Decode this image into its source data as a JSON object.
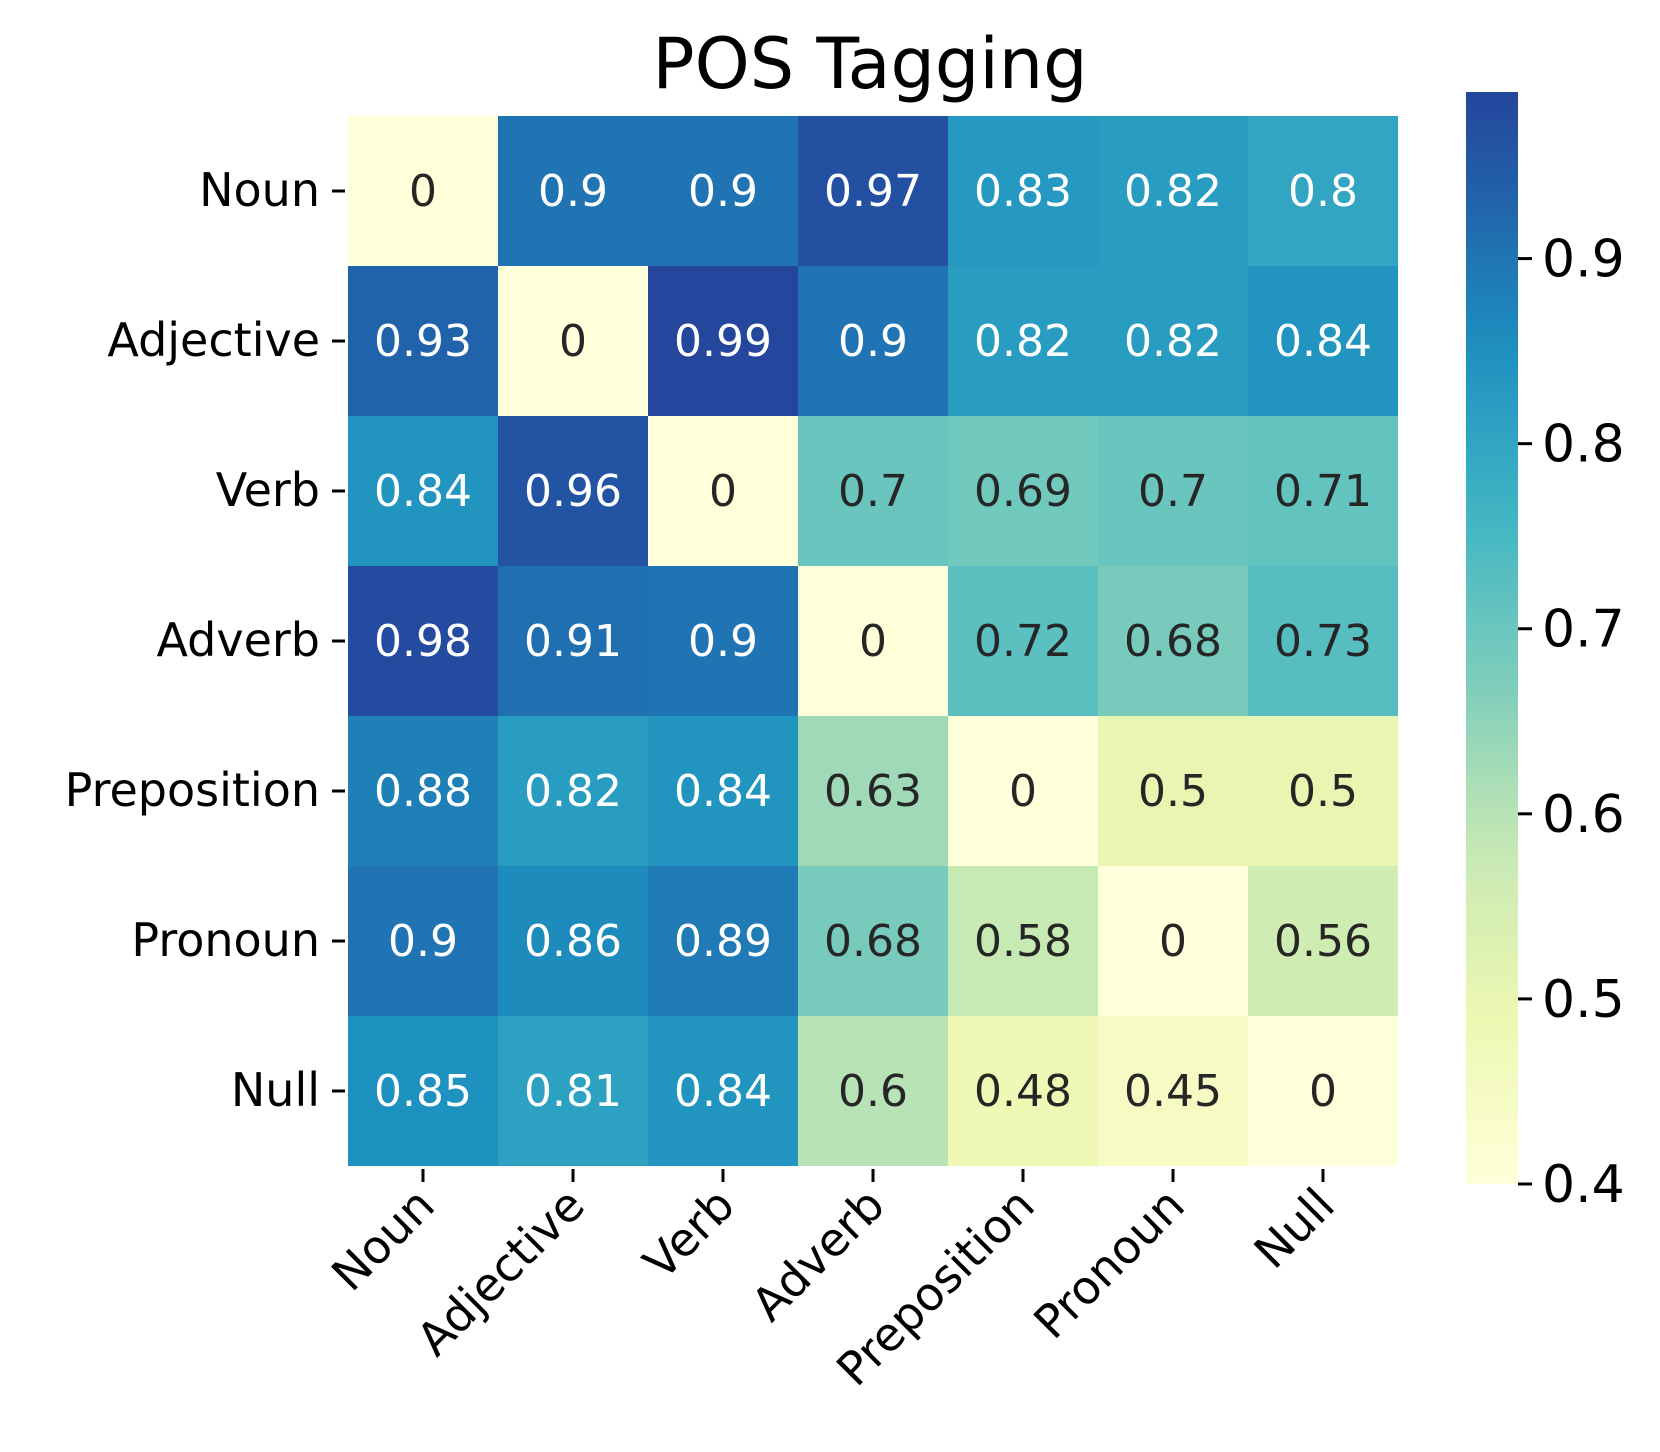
{
  "chart_data": {
    "type": "heatmap",
    "title": "POS Tagging",
    "xlabel": "",
    "ylabel": "",
    "rows": [
      "Noun",
      "Adjective",
      "Verb",
      "Adverb",
      "Preposition",
      "Pronoun",
      "Null"
    ],
    "cols": [
      "Noun",
      "Adjective",
      "Verb",
      "Adverb",
      "Preposition",
      "Pronoun",
      "Null"
    ],
    "values": [
      [
        0,
        0.9,
        0.9,
        0.97,
        0.83,
        0.82,
        0.8
      ],
      [
        0.93,
        0,
        0.99,
        0.9,
        0.82,
        0.82,
        0.84
      ],
      [
        0.84,
        0.96,
        0,
        0.7,
        0.69,
        0.7,
        0.71
      ],
      [
        0.98,
        0.91,
        0.9,
        0,
        0.72,
        0.68,
        0.73
      ],
      [
        0.88,
        0.82,
        0.84,
        0.63,
        0,
        0.5,
        0.5
      ],
      [
        0.9,
        0.86,
        0.89,
        0.68,
        0.58,
        0,
        0.56
      ],
      [
        0.85,
        0.81,
        0.84,
        0.6,
        0.48,
        0.45,
        0
      ]
    ],
    "colormap": "YlGnBu",
    "colorbar": {
      "vmin": 0.4,
      "vmax": 0.99,
      "ticks": [
        "0.4",
        "0.5",
        "0.6",
        "0.7",
        "0.8",
        "0.9"
      ]
    },
    "annot_dark_color": "#262626",
    "annot_light_color": "#ffffff"
  }
}
